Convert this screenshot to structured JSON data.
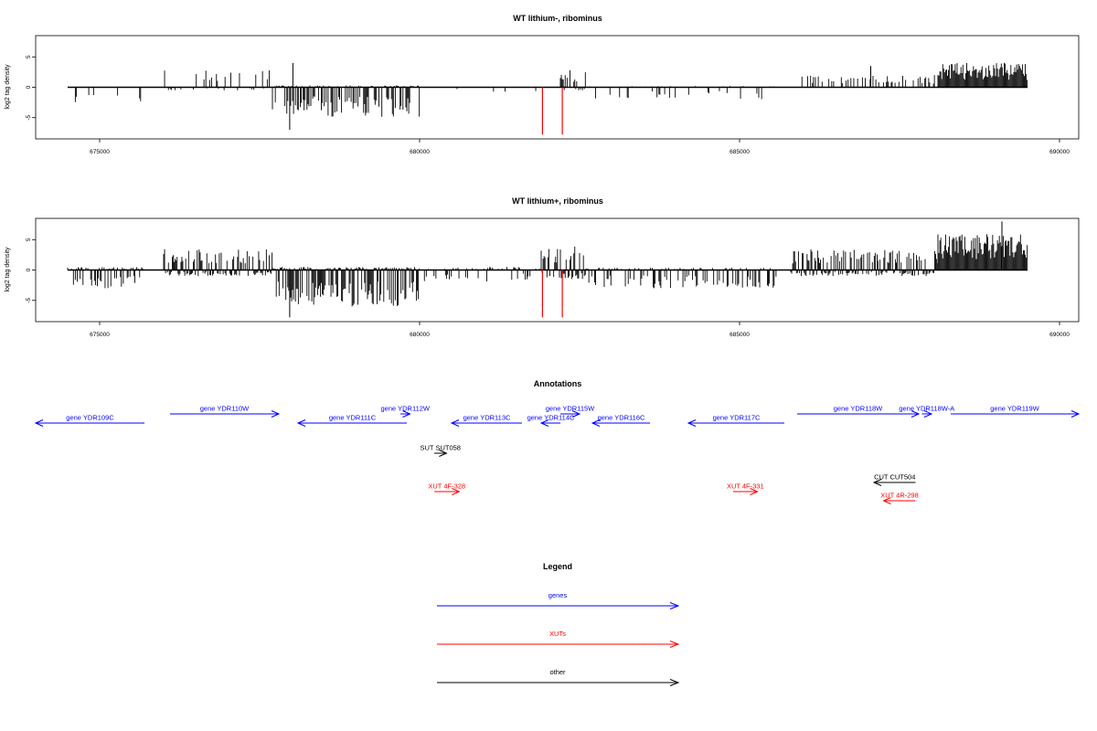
{
  "chart_data": [
    {
      "type": "bar",
      "title": "WT lithium-, ribominus",
      "ylabel": "log2 tag density",
      "xlim": [
        674000,
        690300
      ],
      "ylim": [
        -8.5,
        8.5
      ],
      "xticks": [
        675000,
        680000,
        685000,
        690000
      ],
      "xtick_labels": [
        "675000",
        "680000",
        "685000",
        "690000"
      ],
      "yticks": [
        -5,
        0,
        5
      ],
      "ytick_labels": [
        "-5",
        "0",
        "5"
      ],
      "data_range": [
        674500,
        689500
      ],
      "highlight_color": "#ff0000",
      "highlights": [
        {
          "x": 681920,
          "y": -7.8
        },
        {
          "x": 682230,
          "y": -7.8
        }
      ],
      "regions": [
        {
          "x": [
            674500,
            675700
          ],
          "pos": 0.1,
          "neg": 2.5,
          "density": 0.15
        },
        {
          "x": [
            676000,
            677700
          ],
          "pos": 3.0,
          "neg": 0.5,
          "density": 0.3
        },
        {
          "x": [
            677700,
            680000
          ],
          "pos": 0.3,
          "neg": 5.0,
          "density": 0.8
        },
        {
          "x": [
            680000,
            682000
          ],
          "pos": 0.1,
          "neg": 1.0,
          "density": 0.05
        },
        {
          "x": [
            682200,
            682600
          ],
          "pos": 3.0,
          "neg": 0.5,
          "density": 0.5
        },
        {
          "x": [
            682600,
            685600
          ],
          "pos": 0.2,
          "neg": 2.0,
          "density": 0.2
        },
        {
          "x": [
            685900,
            688100
          ],
          "pos": 2.0,
          "neg": 0.2,
          "density": 0.3
        },
        {
          "x": [
            688100,
            689500
          ],
          "pos": 4.0,
          "neg": 0.1,
          "density": 1.0
        }
      ],
      "spikes": [
        {
          "x": 677970,
          "y": -7.0
        },
        {
          "x": 678020,
          "y": 4.0
        },
        {
          "x": 687050,
          "y": 3.5
        }
      ]
    },
    {
      "type": "bar",
      "title": "WT lithium+, ribominus",
      "ylabel": "log2 tag density",
      "xlim": [
        674000,
        690300
      ],
      "ylim": [
        -8.5,
        8.5
      ],
      "xticks": [
        675000,
        680000,
        685000,
        690000
      ],
      "xtick_labels": [
        "675000",
        "680000",
        "685000",
        "690000"
      ],
      "yticks": [
        -5,
        0,
        5
      ],
      "ytick_labels": [
        "-5",
        "0",
        "5"
      ],
      "data_range": [
        674500,
        689500
      ],
      "highlight_color": "#ff0000",
      "highlights": [
        {
          "x": 681920,
          "y": -7.8
        },
        {
          "x": 682230,
          "y": -7.8
        }
      ],
      "regions": [
        {
          "x": [
            674500,
            675700
          ],
          "pos": 0.5,
          "neg": 3.0,
          "density": 0.7
        },
        {
          "x": [
            676000,
            677700
          ],
          "pos": 3.5,
          "neg": 1.0,
          "density": 0.9
        },
        {
          "x": [
            677700,
            680000
          ],
          "pos": 0.5,
          "neg": 6.0,
          "density": 1.0
        },
        {
          "x": [
            680000,
            681900
          ],
          "pos": 0.5,
          "neg": 2.0,
          "density": 0.3
        },
        {
          "x": [
            681900,
            682600
          ],
          "pos": 4.0,
          "neg": 1.5,
          "density": 0.9
        },
        {
          "x": [
            682600,
            685600
          ],
          "pos": 0.4,
          "neg": 3.0,
          "density": 0.5
        },
        {
          "x": [
            685800,
            688100
          ],
          "pos": 3.5,
          "neg": 1.0,
          "density": 0.9
        },
        {
          "x": [
            688100,
            689500
          ],
          "pos": 6.0,
          "neg": 0.2,
          "density": 1.0
        }
      ],
      "spikes": [
        {
          "x": 677970,
          "y": -7.8
        },
        {
          "x": 689100,
          "y": 8.0
        }
      ]
    }
  ],
  "annotations": {
    "title": "Annotations",
    "genes": [
      {
        "label": "gene YDR109C",
        "x1": 674000,
        "x2": 675700,
        "strand": "-",
        "row": 0
      },
      {
        "label": "gene YDR110W",
        "x1": 676100,
        "x2": 677800,
        "strand": "+",
        "row": 1
      },
      {
        "label": "gene YDR111C",
        "x1": 678100,
        "x2": 679800,
        "strand": "-",
        "row": 0
      },
      {
        "label": "gene YDR112W",
        "x1": 679700,
        "x2": 679850,
        "strand": "+",
        "row": 1
      },
      {
        "label": "gene YDR113C",
        "x1": 680500,
        "x2": 681600,
        "strand": "-",
        "row": 0
      },
      {
        "label": "gene YDR114C",
        "x1": 681900,
        "x2": 682200,
        "strand": "-",
        "row": 0
      },
      {
        "label": "gene YDR115W",
        "x1": 682200,
        "x2": 682500,
        "strand": "+",
        "row": 1
      },
      {
        "label": "gene YDR116C",
        "x1": 682700,
        "x2": 683600,
        "strand": "-",
        "row": 0
      },
      {
        "label": "gene YDR117C",
        "x1": 684200,
        "x2": 685700,
        "strand": "-",
        "row": 0
      },
      {
        "label": "gene YDR118W",
        "x1": 685900,
        "x2": 687800,
        "strand": "+",
        "row": 1
      },
      {
        "label": "gene YDR118W-A",
        "x1": 687850,
        "x2": 688000,
        "strand": "+",
        "row": 1
      },
      {
        "label": "gene YDR119W",
        "x1": 688300,
        "x2": 690300,
        "strand": "+",
        "row": 1
      }
    ],
    "other": [
      {
        "label": "SUT SUT058",
        "x1": 680230,
        "x2": 680420,
        "strand": "+",
        "y": 496
      },
      {
        "label": "CUT CUT504",
        "x1": 687100,
        "x2": 687750,
        "strand": "-",
        "y": 528
      }
    ],
    "xuts": [
      {
        "label": "XUT 4F-328",
        "x1": 680230,
        "x2": 680620,
        "strand": "+",
        "y": 538
      },
      {
        "label": "XUT 4F-331",
        "x1": 684900,
        "x2": 685280,
        "strand": "+",
        "y": 538
      },
      {
        "label": "XUT 4R-298",
        "x1": 687250,
        "x2": 687750,
        "strand": "-",
        "y": 548
      }
    ]
  },
  "legend": {
    "title": "Legend",
    "items": [
      {
        "label": "genes",
        "color": "#0000ff"
      },
      {
        "label": "XUTs",
        "color": "#ff0000"
      },
      {
        "label": "other",
        "color": "#000000"
      }
    ]
  },
  "colors": {
    "genes": "#0000ff",
    "xuts": "#ff0000",
    "other": "#000000",
    "highlight": "#ff0000"
  }
}
